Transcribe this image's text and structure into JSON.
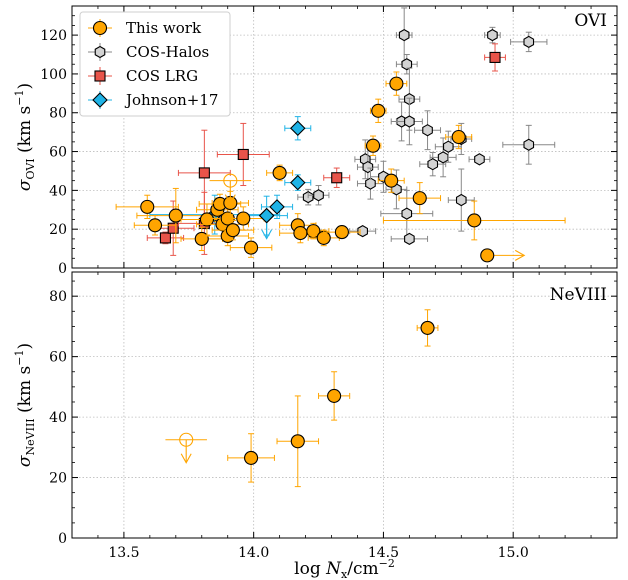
{
  "chart_data": [
    {
      "type": "scatter",
      "panel_label": "OVI",
      "ylabel": "σOVI (km s−1)",
      "ylabel_parts": {
        "main": "σ",
        "sub": "OVI",
        "unit": " (km s",
        "unit_sup": "−1",
        "close": ")"
      },
      "xlim": [
        13.3,
        15.4
      ],
      "ylim": [
        0,
        135
      ],
      "yticks": [
        0,
        20,
        40,
        60,
        80,
        100,
        120
      ],
      "xticks": [
        13.5,
        14.0,
        14.5,
        15.0
      ],
      "grid": true,
      "legend": {
        "placement": "top-left",
        "entries": [
          {
            "label": "This work",
            "series": "this_work"
          },
          {
            "label": "COS-Halos",
            "series": "cos_halos"
          },
          {
            "label": "COS LRG",
            "series": "cos_lrg"
          },
          {
            "label": "Johnson+17",
            "series": "johnson17"
          }
        ]
      },
      "series": [
        {
          "key": "this_work",
          "marker": "circle",
          "color": "#FFA500",
          "edge": "#000000",
          "points": [
            {
              "x": 13.59,
              "y": 31.5,
              "xerr": 0.12,
              "yerr": 6
            },
            {
              "x": 13.62,
              "y": 22,
              "xerr": 0.08,
              "yerr": 5
            },
            {
              "x": 13.7,
              "y": 27,
              "xerr": 0.15,
              "yerr": 14
            },
            {
              "x": 13.8,
              "y": 15,
              "xerr": 0.08,
              "yerr": 6
            },
            {
              "x": 13.82,
              "y": 25,
              "xerr": 0.1,
              "yerr": 8
            },
            {
              "x": 13.86,
              "y": 30,
              "xerr": 0.08,
              "yerr": 6
            },
            {
              "x": 13.87,
              "y": 33,
              "xerr": 0.08,
              "yerr": 5
            },
            {
              "x": 13.88,
              "y": 22.5,
              "xerr": 0.1,
              "yerr": 6
            },
            {
              "x": 13.9,
              "y": 25.5,
              "xerr": 0.08,
              "yerr": 6
            },
            {
              "x": 13.9,
              "y": 16.5,
              "xerr": 0.08,
              "yerr": 5
            },
            {
              "x": 13.91,
              "y": 33.5,
              "xerr": 0.07,
              "yerr": 6
            },
            {
              "x": 13.92,
              "y": 19.5,
              "xerr": 0.08,
              "yerr": 5
            },
            {
              "x": 13.96,
              "y": 25.5,
              "xerr": 0.08,
              "yerr": 6
            },
            {
              "x": 13.99,
              "y": 10.5,
              "xerr": 0.08,
              "yerr": 5
            },
            {
              "x": 14.1,
              "y": 49,
              "xerr": 0.05,
              "yerr": 4
            },
            {
              "x": 14.17,
              "y": 22,
              "xerr": 0.07,
              "yerr": 6
            },
            {
              "x": 14.18,
              "y": 18,
              "xerr": 0.08,
              "yerr": 5
            },
            {
              "x": 14.23,
              "y": 19,
              "xerr": 0.06,
              "yerr": 4
            },
            {
              "x": 14.27,
              "y": 15.5,
              "xerr": 0.06,
              "yerr": 4
            },
            {
              "x": 14.34,
              "y": 18.5,
              "xerr": 0.07,
              "yerr": 3
            },
            {
              "x": 14.46,
              "y": 63,
              "xerr": 0.03,
              "yerr": 5
            },
            {
              "x": 14.48,
              "y": 81,
              "xerr": 0.03,
              "yerr": 6
            },
            {
              "x": 14.53,
              "y": 45,
              "xerr": 0.05,
              "yerr": 6
            },
            {
              "x": 14.55,
              "y": 95,
              "xerr": 0.04,
              "yerr": 6
            },
            {
              "x": 14.64,
              "y": 36,
              "xerr": 0.08,
              "yerr": 8
            },
            {
              "x": 14.79,
              "y": 67.5,
              "xerr": 0.05,
              "yerr": 6
            },
            {
              "x": 14.85,
              "y": 24.5,
              "xerr": 0.35,
              "yerr": 10
            }
          ]
        },
        {
          "key": "cos_halos",
          "marker": "hexagon",
          "color": "#D3D3D3",
          "edge": "#000000",
          "points": [
            {
              "x": 14.21,
              "y": 36.5,
              "xerr": 0.04,
              "yerr": 4
            },
            {
              "x": 14.25,
              "y": 37.5,
              "xerr": 0.04,
              "yerr": 5
            },
            {
              "x": 14.42,
              "y": 19,
              "xerr": 0.05,
              "yerr": 2
            },
            {
              "x": 14.43,
              "y": 56,
              "xerr": 0.04,
              "yerr": 10
            },
            {
              "x": 14.44,
              "y": 52,
              "xerr": 0.04,
              "yerr": 10
            },
            {
              "x": 14.45,
              "y": 43.5,
              "xerr": 0.05,
              "yerr": 8
            },
            {
              "x": 14.5,
              "y": 47,
              "xerr": 0.05,
              "yerr": 8
            },
            {
              "x": 14.55,
              "y": 40.5,
              "xerr": 0.04,
              "yerr": 10
            },
            {
              "x": 14.57,
              "y": 75.5,
              "xerr": 0.04,
              "yerr": 10
            },
            {
              "x": 14.58,
              "y": 120,
              "xerr": 0.03,
              "yerr": 14
            },
            {
              "x": 14.59,
              "y": 105,
              "xerr": 0.04,
              "yerr": 5
            },
            {
              "x": 14.59,
              "y": 28,
              "xerr": 0.1,
              "yerr": 12
            },
            {
              "x": 14.6,
              "y": 87,
              "xerr": 0.04,
              "yerr": 16
            },
            {
              "x": 14.6,
              "y": 75.5,
              "xerr": 0.05,
              "yerr": 12
            },
            {
              "x": 14.6,
              "y": 15,
              "xerr": 0.07,
              "yerr": 2
            },
            {
              "x": 14.67,
              "y": 71,
              "xerr": 0.05,
              "yerr": 10
            },
            {
              "x": 14.69,
              "y": 53.5,
              "xerr": 0.05,
              "yerr": 6
            },
            {
              "x": 14.73,
              "y": 57,
              "xerr": 0.05,
              "yerr": 10
            },
            {
              "x": 14.75,
              "y": 62.5,
              "xerr": 0.05,
              "yerr": 8
            },
            {
              "x": 14.8,
              "y": 66.5,
              "xerr": 0.04,
              "yerr": 8
            },
            {
              "x": 14.8,
              "y": 35,
              "xerr": 0.05,
              "yerr": 16
            },
            {
              "x": 14.87,
              "y": 56,
              "xerr": 0.04,
              "yerr": 2
            },
            {
              "x": 14.92,
              "y": 120,
              "xerr": 0.03,
              "yerr": 4
            },
            {
              "x": 15.06,
              "y": 116.5,
              "xerr": 0.07,
              "yerr": 5
            },
            {
              "x": 15.06,
              "y": 63.5,
              "xerr": 0.1,
              "yerr": 10
            }
          ]
        },
        {
          "key": "cos_lrg",
          "marker": "square",
          "color": "#E8544A",
          "edge": "#000000",
          "points": [
            {
              "x": 13.66,
              "y": 15.5,
              "xerr": 0.07,
              "yerr": 3
            },
            {
              "x": 13.69,
              "y": 20.5,
              "xerr": 0.08,
              "yerr": 14
            },
            {
              "x": 13.81,
              "y": 49,
              "xerr": 0.1,
              "yerr": 22
            },
            {
              "x": 13.81,
              "y": 23,
              "xerr": 0.1,
              "yerr": 16
            },
            {
              "x": 13.96,
              "y": 58.5,
              "xerr": 0.1,
              "yerr": 16
            },
            {
              "x": 14.32,
              "y": 46.5,
              "xerr": 0.05,
              "yerr": 5
            },
            {
              "x": 14.93,
              "y": 108.5,
              "xerr": 0.04,
              "yerr": 7
            }
          ]
        },
        {
          "key": "johnson17",
          "marker": "diamond",
          "color": "#1FB3E6",
          "edge": "#000000",
          "points": [
            {
              "x": 13.85,
              "y": 27.5,
              "xerr": 0.25,
              "yerr": 10
            },
            {
              "x": 14.05,
              "y": 27,
              "xerr": 0.08,
              "yerr": 10
            },
            {
              "x": 14.09,
              "y": 31.5,
              "xerr": 0.06,
              "yerr": 6
            },
            {
              "x": 14.17,
              "y": 72,
              "xerr": 0.05,
              "yerr": 6
            },
            {
              "x": 14.17,
              "y": 44,
              "xerr": 0.05,
              "yerr": 4
            }
          ]
        }
      ],
      "upper_limits": [
        {
          "series": "this_work",
          "x": 13.91,
          "y": 45,
          "xerr": 0.08
        },
        {
          "series": "johnson17",
          "x": 14.05,
          "y": 27
        }
      ],
      "lower_limits_x": [
        {
          "series": "this_work",
          "x": 14.9,
          "y": 6.5
        }
      ]
    },
    {
      "type": "scatter",
      "panel_label": "NeVIII",
      "ylabel": "σNeVIII (km s−1)",
      "ylabel_parts": {
        "main": "σ",
        "sub": "NeVIII",
        "unit": " (km s",
        "unit_sup": "−1",
        "close": ")"
      },
      "xlabel": "log Nx/cm−2",
      "xlabel_parts": {
        "pre": "log ",
        "var": "N",
        "sub": "x",
        "mid": "/cm",
        "sup": "−2"
      },
      "xlim": [
        13.3,
        15.4
      ],
      "ylim": [
        0,
        88
      ],
      "yticks": [
        0,
        20,
        40,
        60,
        80
      ],
      "xticks": [
        13.5,
        14.0,
        14.5,
        15.0
      ],
      "xticklabels": [
        "13.5",
        "14.0",
        "14.5",
        "15.0"
      ],
      "grid": true,
      "series": [
        {
          "key": "this_work",
          "marker": "circle",
          "color": "#FFA500",
          "edge": "#000000",
          "points": [
            {
              "x": 13.99,
              "y": 26.5,
              "xerr": 0.09,
              "yerr": 8
            },
            {
              "x": 14.17,
              "y": 32,
              "xerr": 0.08,
              "yerr": 15
            },
            {
              "x": 14.31,
              "y": 47,
              "xerr": 0.06,
              "yerr": 8
            },
            {
              "x": 14.67,
              "y": 69.5,
              "xerr": 0.04,
              "yerr": 6
            }
          ]
        }
      ],
      "upper_limits": [
        {
          "series": "this_work",
          "x": 13.74,
          "y": 32.5,
          "xerr": 0.08
        }
      ]
    }
  ]
}
